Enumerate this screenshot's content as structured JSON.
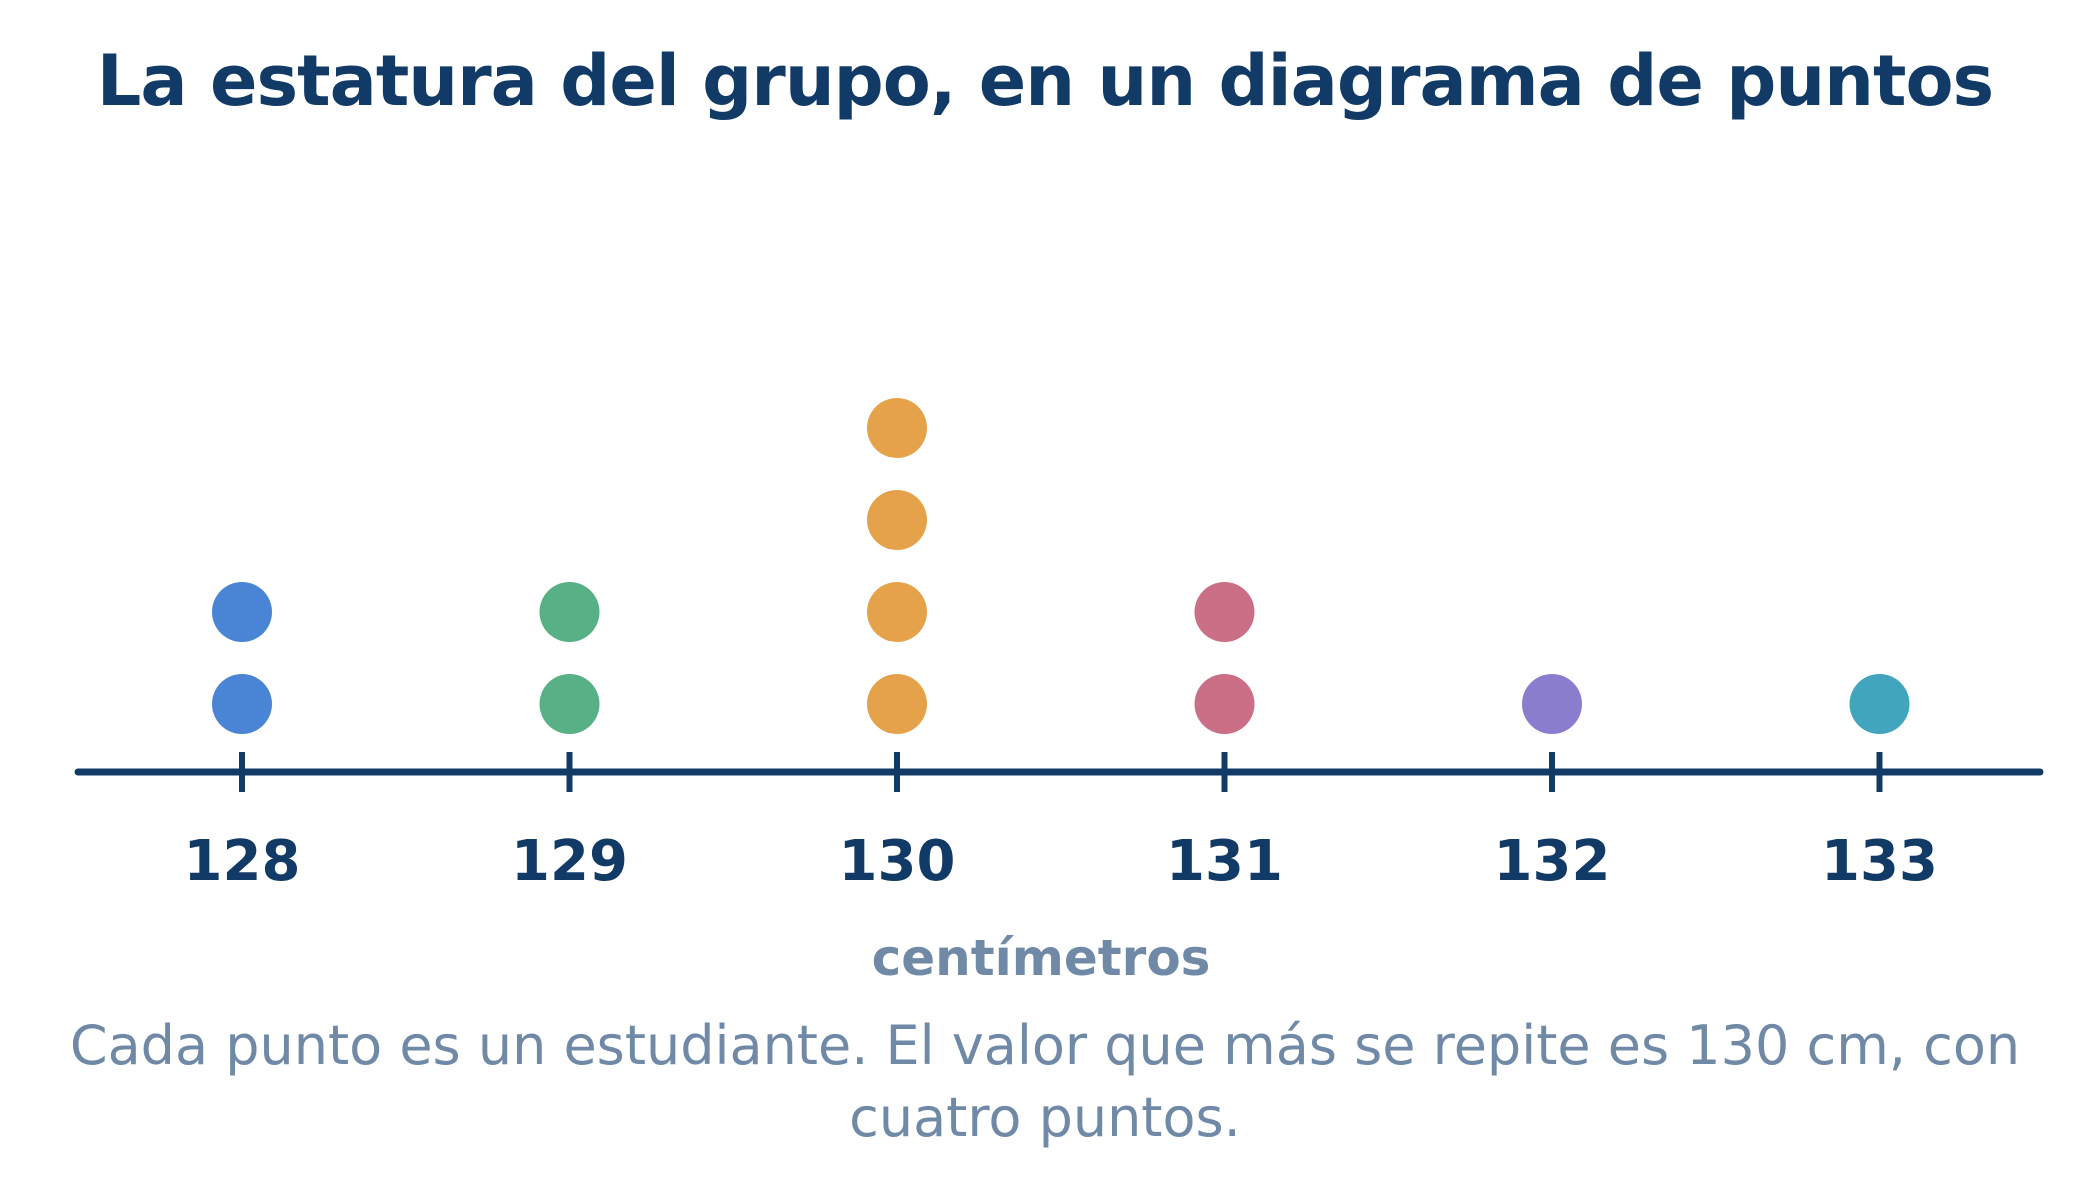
{
  "title": "La estatura del grupo, en un diagrama de puntos",
  "caption": "Cada punto es un estudiante. El valor que más se repite es 130 cm, con cuatro puntos.",
  "chart_data": {
    "type": "dot",
    "title": "La estatura del grupo, en un diagrama de puntos",
    "xlabel": "centímetros",
    "ylabel": "",
    "x": [
      128,
      129,
      130,
      131,
      132,
      133
    ],
    "tick_labels": [
      "128",
      "129",
      "130",
      "131",
      "132",
      "133"
    ],
    "counts": [
      2,
      2,
      4,
      2,
      1,
      1
    ],
    "colors": [
      "#4a84d4",
      "#58b087",
      "#e5a24a",
      "#cb6f86",
      "#8a7dce",
      "#41a5bd"
    ],
    "grid": false,
    "legend": "none"
  },
  "colors": {
    "axis": "#123a66",
    "title": "#123a66",
    "muted": "#6f89a6"
  }
}
